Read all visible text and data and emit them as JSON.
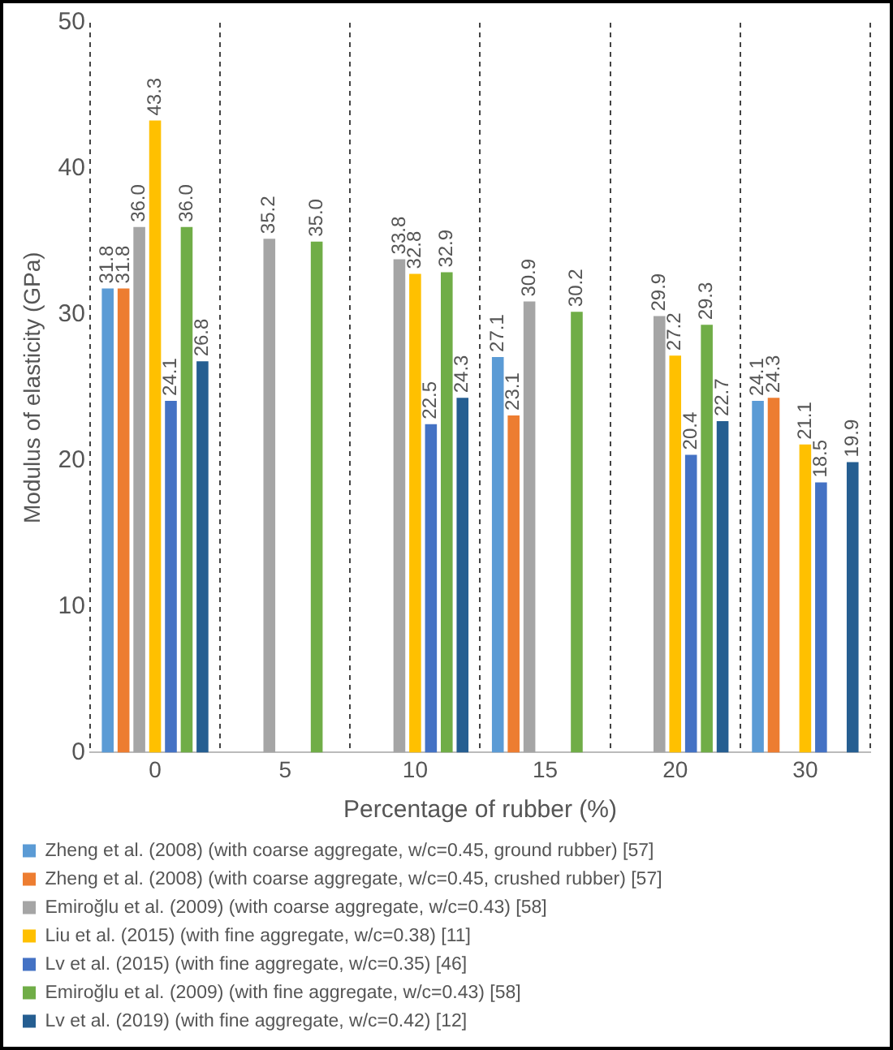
{
  "chart_data": {
    "type": "bar",
    "xlabel": "Percentage of rubber (%)",
    "ylabel": "Modulus of elasticity (GPa)",
    "categories": [
      "0",
      "5",
      "10",
      "15",
      "20",
      "30"
    ],
    "series": [
      {
        "name": "Zheng et al. (2008) (with coarse aggregate, w/c=0.45, ground rubber) [57]",
        "color": "#5b9bd5",
        "values": [
          31.8,
          null,
          null,
          27.1,
          null,
          24.1
        ],
        "value_labels": [
          "31.8",
          null,
          null,
          "27.1",
          null,
          "24.1"
        ]
      },
      {
        "name": "Zheng et al. (2008) (with coarse aggregate, w/c=0.45, crushed rubber) [57]",
        "color": "#ed7d31",
        "values": [
          31.8,
          null,
          null,
          23.1,
          null,
          24.3
        ],
        "value_labels": [
          "31.8",
          null,
          null,
          "23.1",
          null,
          "24.3"
        ]
      },
      {
        "name": "Emiroğlu et al. (2009) (with coarse aggregate, w/c=0.43) [58]",
        "color": "#a5a5a5",
        "values": [
          36.0,
          35.2,
          33.8,
          30.9,
          29.9,
          null
        ],
        "value_labels": [
          "36.0",
          "35.2",
          "33.8",
          "30.9",
          "29.9",
          null
        ]
      },
      {
        "name": "Liu et al. (2015) (with fine aggregate, w/c=0.38) [11]",
        "color": "#ffc000",
        "values": [
          43.3,
          null,
          32.8,
          null,
          27.2,
          21.1
        ],
        "value_labels": [
          "43.3",
          null,
          "32.8",
          null,
          "27.2",
          "21.1"
        ]
      },
      {
        "name": "Lv et al. (2015) (with fine aggregate, w/c=0.35) [46]",
        "color": "#4472c4",
        "values": [
          24.1,
          null,
          22.5,
          null,
          20.4,
          18.5
        ],
        "value_labels": [
          "24.1",
          null,
          "22.5",
          null,
          "20.4",
          "18.5"
        ]
      },
      {
        "name": "Emiroğlu et al. (2009) (with fine aggregate, w/c=0.43) [58]",
        "color": "#70ad47",
        "values": [
          36.0,
          35.0,
          32.9,
          30.2,
          29.3,
          null
        ],
        "value_labels": [
          "36.0",
          "35.0",
          "32.9",
          "30.2",
          "29.3",
          null
        ]
      },
      {
        "name": "Lv et al. (2019) (with fine aggregate, w/c=0.42) [12]",
        "color": "#255e91",
        "values": [
          26.8,
          null,
          24.3,
          null,
          22.7,
          19.9
        ],
        "value_labels": [
          "26.8",
          null,
          "24.3",
          null,
          "22.7",
          "19.9"
        ]
      }
    ],
    "ylim": [
      0,
      50
    ],
    "yticks": [
      0,
      10,
      20,
      30,
      40,
      50
    ],
    "grid": "x",
    "legend": "bottom"
  }
}
